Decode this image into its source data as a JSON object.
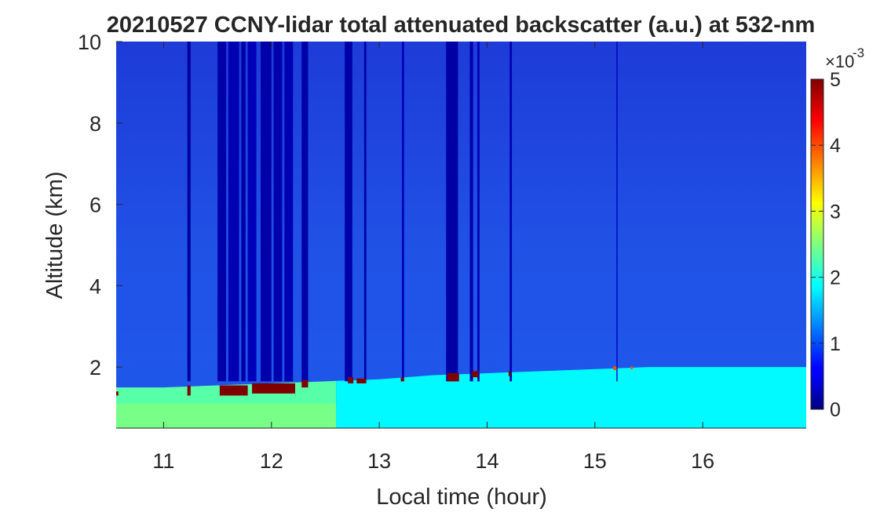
{
  "chart_data": {
    "type": "heatmap",
    "title": "20210527 CCNY-lidar total attenuated backscatter (a.u.) at 532-nm",
    "xlabel": "Local time (hour)",
    "ylabel": "Altitude (km)",
    "xlim": [
      10.56,
      16.96
    ],
    "ylim": [
      0.5,
      10
    ],
    "xticks": [
      11,
      12,
      13,
      14,
      15,
      16
    ],
    "yticks": [
      2,
      4,
      6,
      8,
      10
    ],
    "grid": false,
    "colorbar": {
      "colormap": "jet",
      "clim": [
        0,
        5
      ],
      "ticks": [
        0,
        1,
        2,
        3,
        4,
        5
      ],
      "multiplier": "×10",
      "exponent": "-3"
    },
    "background": {
      "upper_value": 0.45,
      "mid_value": 0.9,
      "boundary_layer_value": 1.85,
      "boundary_layer_value_before_12_6": 2.3
    },
    "boundary_layer_top_km": [
      {
        "t": 10.56,
        "z": 1.5
      },
      {
        "t": 11.0,
        "z": 1.5
      },
      {
        "t": 11.5,
        "z": 1.55
      },
      {
        "t": 12.0,
        "z": 1.6
      },
      {
        "t": 12.5,
        "z": 1.65
      },
      {
        "t": 13.0,
        "z": 1.7
      },
      {
        "t": 13.5,
        "z": 1.8
      },
      {
        "t": 14.0,
        "z": 1.85
      },
      {
        "t": 14.5,
        "z": 1.9
      },
      {
        "t": 15.0,
        "z": 1.95
      },
      {
        "t": 15.5,
        "z": 2.0
      },
      {
        "t": 16.0,
        "z": 2.0
      },
      {
        "t": 16.96,
        "z": 2.0
      }
    ],
    "cloud_patches": [
      {
        "t0": 10.56,
        "t1": 10.58,
        "z0": 1.3,
        "z1": 1.4,
        "value": 5
      },
      {
        "t0": 11.22,
        "t1": 11.25,
        "z0": 1.3,
        "z1": 1.55,
        "value": 5
      },
      {
        "t0": 11.52,
        "t1": 11.78,
        "z0": 1.3,
        "z1": 1.55,
        "value": 5
      },
      {
        "t0": 11.82,
        "t1": 12.22,
        "z0": 1.35,
        "z1": 1.6,
        "value": 5
      },
      {
        "t0": 12.28,
        "t1": 12.34,
        "z0": 1.5,
        "z1": 1.68,
        "value": 5
      },
      {
        "t0": 12.71,
        "t1": 12.76,
        "z0": 1.6,
        "z1": 1.75,
        "value": 5
      },
      {
        "t0": 12.79,
        "t1": 12.88,
        "z0": 1.6,
        "z1": 1.72,
        "value": 5
      },
      {
        "t0": 13.2,
        "t1": 13.23,
        "z0": 1.65,
        "z1": 1.75,
        "value": 5
      },
      {
        "t0": 13.63,
        "t1": 13.74,
        "z0": 1.65,
        "z1": 1.85,
        "value": 5
      },
      {
        "t0": 13.86,
        "t1": 13.92,
        "z0": 1.75,
        "z1": 1.9,
        "value": 5
      },
      {
        "t0": 14.2,
        "t1": 14.22,
        "z0": 1.78,
        "z1": 1.9,
        "value": 5
      },
      {
        "t0": 15.17,
        "t1": 15.2,
        "z0": 1.93,
        "z1": 2.02,
        "value": 4
      },
      {
        "t0": 15.33,
        "t1": 15.35,
        "z0": 1.95,
        "z1": 2.02,
        "value": 4
      }
    ],
    "attenuated_columns": [
      {
        "t0": 11.22,
        "t1": 11.25,
        "value": 0.15
      },
      {
        "t0": 11.5,
        "t1": 11.58,
        "value": 0.2
      },
      {
        "t0": 11.6,
        "t1": 11.7,
        "value": 0.25
      },
      {
        "t0": 11.72,
        "t1": 11.76,
        "value": 0.2
      },
      {
        "t0": 11.78,
        "t1": 11.86,
        "value": 0.28
      },
      {
        "t0": 11.9,
        "t1": 12.0,
        "value": 0.2
      },
      {
        "t0": 12.02,
        "t1": 12.1,
        "value": 0.22
      },
      {
        "t0": 12.12,
        "t1": 12.2,
        "value": 0.25
      },
      {
        "t0": 12.28,
        "t1": 12.34,
        "value": 0.2
      },
      {
        "t0": 12.68,
        "t1": 12.75,
        "value": 0.2
      },
      {
        "t0": 12.86,
        "t1": 12.88,
        "value": 0.2
      },
      {
        "t0": 13.21,
        "t1": 13.23,
        "value": 0.3
      },
      {
        "t0": 13.62,
        "t1": 13.73,
        "value": 0.18
      },
      {
        "t0": 13.84,
        "t1": 13.87,
        "value": 0.22
      },
      {
        "t0": 13.91,
        "t1": 13.93,
        "value": 0.25
      },
      {
        "t0": 14.21,
        "t1": 14.23,
        "value": 0.25
      },
      {
        "t0": 15.2,
        "t1": 15.21,
        "value": 0.35
      }
    ]
  }
}
